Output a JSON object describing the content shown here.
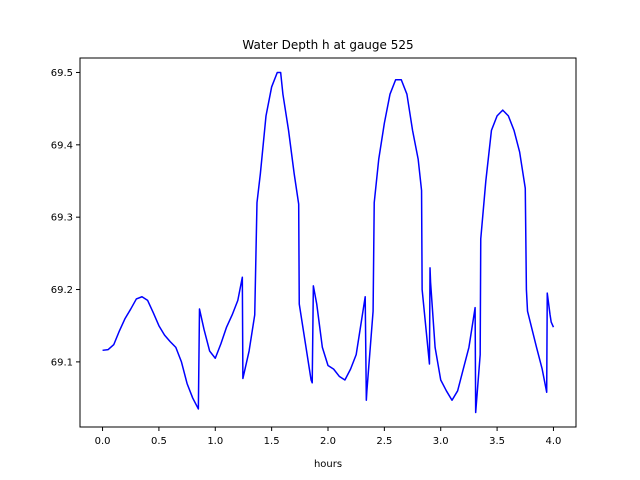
{
  "chart_data": {
    "type": "line",
    "title": "Water Depth h at gauge 525",
    "xlabel": "hours",
    "ylabel": "",
    "xlim": [
      -0.2,
      4.2
    ],
    "ylim": [
      69.01,
      69.52
    ],
    "xticks": [
      0.0,
      0.5,
      1.0,
      1.5,
      2.0,
      2.5,
      3.0,
      3.5,
      4.0
    ],
    "xtick_labels": [
      "0.0",
      "0.5",
      "1.0",
      "1.5",
      "2.0",
      "2.5",
      "3.0",
      "3.5",
      "4.0"
    ],
    "yticks": [
      69.1,
      69.2,
      69.3,
      69.4,
      69.5
    ],
    "ytick_labels": [
      "69.1",
      "69.2",
      "69.3",
      "69.4",
      "69.5"
    ],
    "grid": false,
    "series": [
      {
        "color": "#0000ff",
        "x": [
          0.0,
          0.05,
          0.1,
          0.15,
          0.2,
          0.25,
          0.3,
          0.35,
          0.4,
          0.45,
          0.5,
          0.55,
          0.6,
          0.65,
          0.7,
          0.75,
          0.8,
          0.85,
          0.86,
          0.9,
          0.95,
          1.0,
          1.05,
          1.1,
          1.15,
          1.2,
          1.24,
          1.245,
          1.3,
          1.35,
          1.37,
          1.4,
          1.45,
          1.5,
          1.55,
          1.58,
          1.6,
          1.65,
          1.7,
          1.74,
          1.745,
          1.8,
          1.85,
          1.86,
          1.87,
          1.9,
          1.95,
          2.0,
          2.05,
          2.1,
          2.15,
          2.2,
          2.25,
          2.3,
          2.33,
          2.34,
          2.345,
          2.4,
          2.41,
          2.45,
          2.5,
          2.55,
          2.6,
          2.65,
          2.7,
          2.75,
          2.8,
          2.83,
          2.835,
          2.9,
          2.905,
          2.91,
          2.95,
          3.0,
          3.05,
          3.1,
          3.15,
          3.2,
          3.25,
          3.3,
          3.305,
          3.31,
          3.35,
          3.355,
          3.4,
          3.45,
          3.5,
          3.55,
          3.6,
          3.65,
          3.7,
          3.75,
          3.76,
          3.77,
          3.85,
          3.9,
          3.94,
          3.945,
          3.97,
          3.98,
          4.0
        ],
        "y": [
          69.116,
          69.117,
          69.124,
          69.143,
          69.16,
          69.173,
          69.187,
          69.19,
          69.185,
          69.168,
          69.15,
          69.137,
          69.128,
          69.12,
          69.1,
          69.07,
          69.05,
          69.035,
          69.173,
          69.145,
          69.115,
          69.105,
          69.125,
          69.148,
          69.165,
          69.185,
          69.217,
          69.077,
          69.115,
          69.165,
          69.32,
          69.36,
          69.44,
          69.48,
          69.5,
          69.5,
          69.47,
          69.42,
          69.36,
          69.318,
          69.18,
          69.125,
          69.075,
          69.071,
          69.205,
          69.18,
          69.12,
          69.095,
          69.09,
          69.08,
          69.075,
          69.09,
          69.11,
          69.16,
          69.19,
          69.047,
          69.06,
          69.17,
          69.32,
          69.38,
          69.43,
          69.47,
          69.49,
          69.49,
          69.47,
          69.42,
          69.38,
          69.337,
          69.2,
          69.097,
          69.23,
          69.21,
          69.12,
          69.075,
          69.06,
          69.047,
          69.06,
          69.09,
          69.12,
          69.17,
          69.175,
          69.03,
          69.11,
          69.27,
          69.35,
          69.42,
          69.44,
          69.448,
          69.44,
          69.42,
          69.39,
          69.34,
          69.2,
          69.17,
          69.12,
          69.09,
          69.058,
          69.195,
          69.165,
          69.155,
          69.148
        ]
      }
    ]
  }
}
